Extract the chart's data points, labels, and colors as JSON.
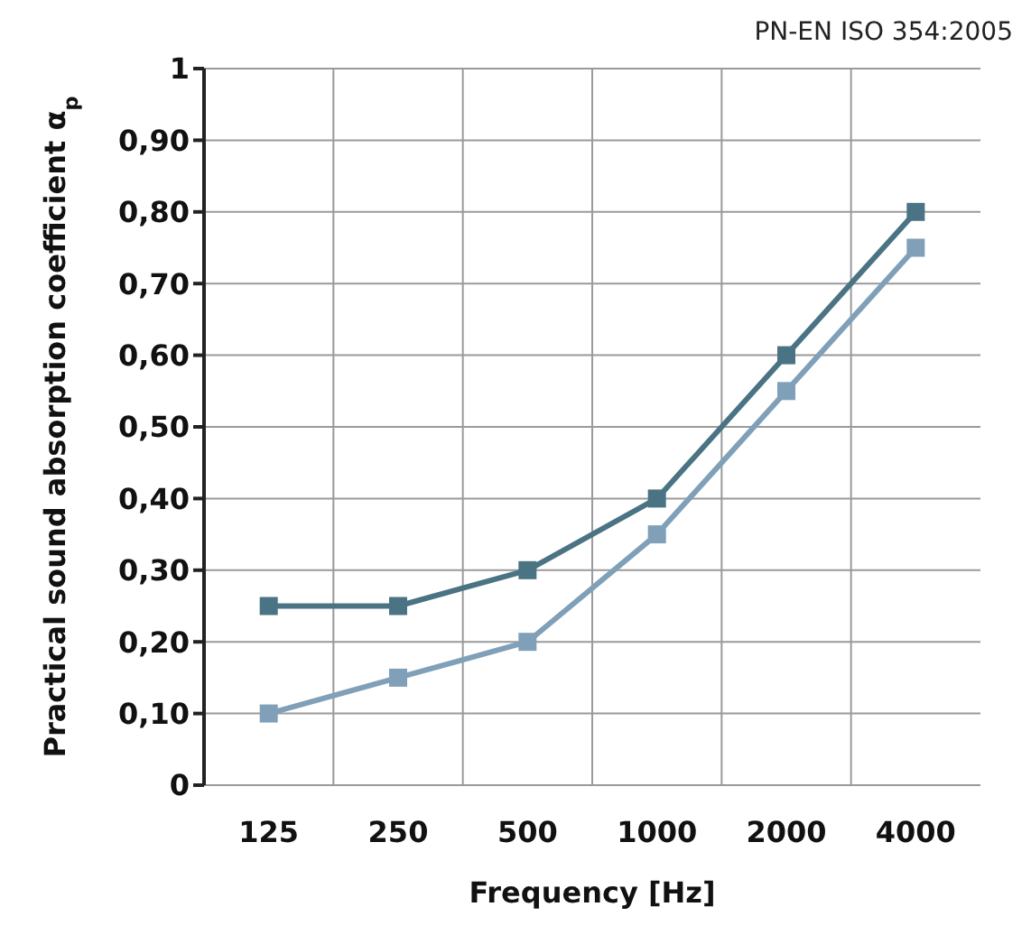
{
  "chart_data": {
    "type": "line",
    "annotations": [
      "PN-EN ISO 354:2005"
    ],
    "xlabel": "Frequency [Hz]",
    "ylabel": "Practical sound absorption coefficient α$_{p}$",
    "categories": [
      "125",
      "250",
      "500",
      "1000",
      "2000",
      "4000"
    ],
    "series": [
      {
        "color": "#4a7384",
        "values": [
          0.25,
          0.25,
          0.3,
          0.4,
          0.6,
          0.8
        ]
      },
      {
        "color": "#7fa0b8",
        "values": [
          0.1,
          0.15,
          0.2,
          0.35,
          0.55,
          0.75
        ]
      }
    ],
    "ylim": [
      0,
      1
    ],
    "yticks": [
      {
        "value": 0,
        "label": "0"
      },
      {
        "value": 0.1,
        "label": "0,10"
      },
      {
        "value": 0.2,
        "label": "0,20"
      },
      {
        "value": 0.3,
        "label": "0,30"
      },
      {
        "value": 0.4,
        "label": "0,40"
      },
      {
        "value": 0.5,
        "label": "0,50"
      },
      {
        "value": 0.6,
        "label": "0,60"
      },
      {
        "value": 0.7,
        "label": "0,70"
      },
      {
        "value": 0.8,
        "label": "0,80"
      },
      {
        "value": 0.9,
        "label": "0,90"
      },
      {
        "value": 1,
        "label": "1"
      }
    ],
    "grid": true,
    "marker": "square",
    "line_style": "solid"
  }
}
